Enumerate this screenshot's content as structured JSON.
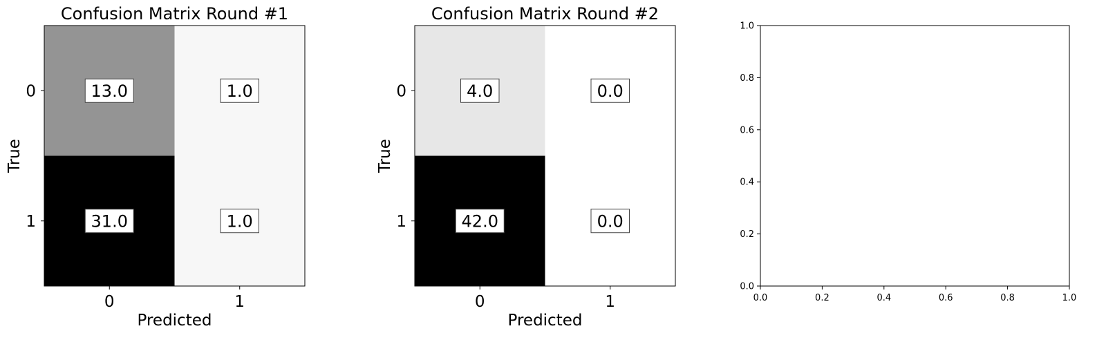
{
  "chart_data": [
    {
      "type": "heatmap",
      "title": "Confusion Matrix Round #1",
      "xlabel": "Predicted",
      "ylabel": "True",
      "x_categories": [
        "0",
        "1"
      ],
      "y_categories": [
        "0",
        "1"
      ],
      "matrix": [
        [
          13.0,
          1.0
        ],
        [
          31.0,
          1.0
        ]
      ],
      "cell_labels": [
        [
          "13.0",
          "1.0"
        ],
        [
          "31.0",
          "1.0"
        ]
      ],
      "colormap": "gray_r",
      "color_range": [
        0,
        31.0
      ]
    },
    {
      "type": "heatmap",
      "title": "Confusion Matrix Round #2",
      "xlabel": "Predicted",
      "ylabel": "True",
      "x_categories": [
        "0",
        "1"
      ],
      "y_categories": [
        "0",
        "1"
      ],
      "matrix": [
        [
          4.0,
          0.0
        ],
        [
          42.0,
          0.0
        ]
      ],
      "cell_labels": [
        [
          "4.0",
          "0.0"
        ],
        [
          "42.0",
          "0.0"
        ]
      ],
      "colormap": "gray_r",
      "color_range": [
        0,
        42.0
      ]
    },
    {
      "type": "scatter",
      "title": "",
      "xlabel": "",
      "ylabel": "",
      "xlim": [
        0.0,
        1.0
      ],
      "ylim": [
        0.0,
        1.0
      ],
      "x_ticks": [
        "0.0",
        "0.2",
        "0.4",
        "0.6",
        "0.8",
        "1.0"
      ],
      "y_ticks": [
        "0.0",
        "0.2",
        "0.4",
        "0.6",
        "0.8",
        "1.0"
      ],
      "series": []
    }
  ]
}
